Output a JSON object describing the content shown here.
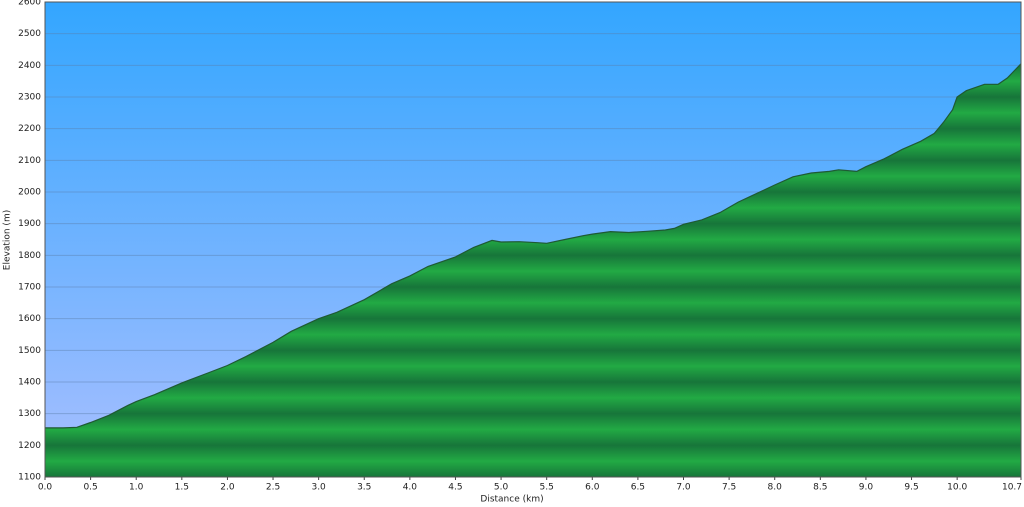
{
  "chart_data": {
    "type": "area",
    "x_label": "Distance   (km)",
    "y_label": "Elevation (m)",
    "x": [
      0,
      0.2,
      0.35,
      0.5,
      0.7,
      0.9,
      1.0,
      1.2,
      1.5,
      1.8,
      2.0,
      2.2,
      2.5,
      2.7,
      3.0,
      3.2,
      3.5,
      3.8,
      4.0,
      4.2,
      4.5,
      4.7,
      4.9,
      5.0,
      5.2,
      5.4,
      5.5,
      5.7,
      5.9,
      6.0,
      6.2,
      6.4,
      6.6,
      6.8,
      6.9,
      7.0,
      7.2,
      7.4,
      7.6,
      7.8,
      8.0,
      8.2,
      8.4,
      8.6,
      8.7,
      8.9,
      9.0,
      9.2,
      9.4,
      9.6,
      9.75,
      9.85,
      9.95,
      10.0,
      10.1,
      10.3,
      10.45,
      10.55,
      10.7
    ],
    "values": [
      1255,
      1255,
      1257,
      1272,
      1295,
      1325,
      1338,
      1360,
      1397,
      1430,
      1452,
      1480,
      1525,
      1560,
      1600,
      1620,
      1660,
      1710,
      1735,
      1765,
      1795,
      1825,
      1847,
      1842,
      1843,
      1840,
      1838,
      1850,
      1862,
      1867,
      1875,
      1872,
      1876,
      1880,
      1885,
      1898,
      1912,
      1935,
      1968,
      1995,
      2022,
      2048,
      2060,
      2065,
      2070,
      2065,
      2080,
      2105,
      2135,
      2160,
      2185,
      2220,
      2260,
      2300,
      2320,
      2340,
      2340,
      2360,
      2405
    ],
    "color": "#22aa44",
    "xlim": [
      0,
      10.7
    ],
    "xticks": [
      {
        "value": 0,
        "label": "0.0"
      },
      0.5,
      {
        "value": 1,
        "label": "1.0"
      },
      1.5,
      {
        "value": 2,
        "label": "2.0"
      },
      2.5,
      {
        "value": 3,
        "label": "3.0"
      },
      3.5,
      {
        "value": 4,
        "label": "4.0"
      },
      4.5,
      {
        "value": 5,
        "label": "5.0"
      },
      5.5,
      {
        "value": 6,
        "label": "6.0"
      },
      6.5,
      {
        "value": 7,
        "label": "7.0"
      },
      7.5,
      {
        "value": 8,
        "label": "8.0"
      },
      8.5,
      {
        "value": 9,
        "label": "9.0"
      },
      9.5,
      {
        "value": 10,
        "label": "10.0"
      },
      10.7
    ],
    "ylim": [
      1100,
      2600
    ],
    "yticks": [
      1100,
      1200,
      1300,
      1400,
      1500,
      1600,
      1700,
      1800,
      1900,
      2000,
      2100,
      2200,
      2300,
      2400,
      2500,
      2600
    ],
    "grid": true
  }
}
